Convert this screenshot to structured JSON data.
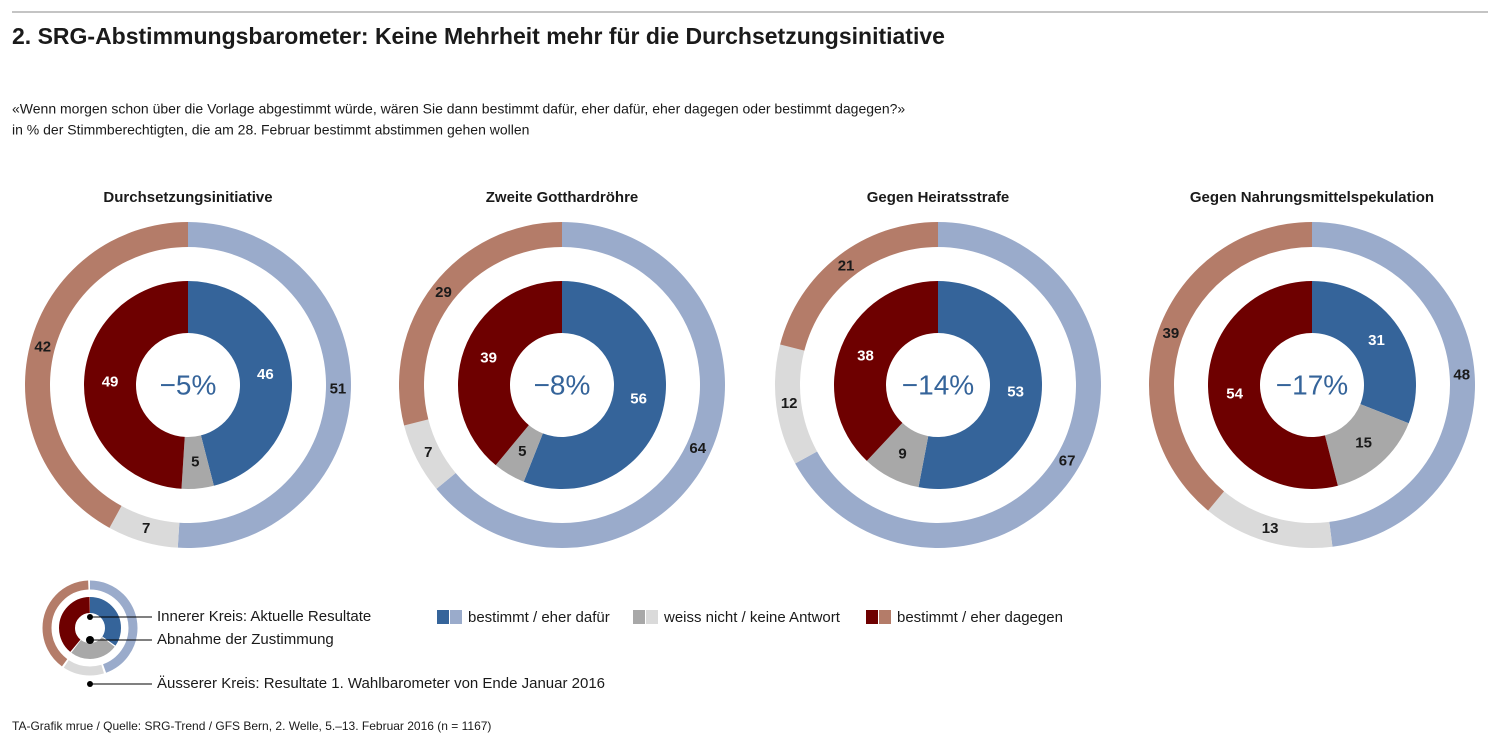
{
  "title": "2. SRG-Abstimmungsbarometer: Keine Mehrheit mehr für die Durchsetzungsinitiative",
  "question": "«Wenn morgen schon über die Vorlage abgestimmt würde, wären Sie dann bestimmt dafür, eher dafür, eher dagegen oder bestimmt dagegen?»",
  "subtitle": "in % der Stimmberechtigten, die am 28. Februar bestimmt abstimmen gehen wollen",
  "legend": [
    {
      "name": "bestimmt / eher dafür",
      "colors": [
        "#35649a",
        "#9aabcb"
      ]
    },
    {
      "name": "weiss nicht / keine Antwort",
      "colors": [
        "#a8a8a8",
        "#dadada"
      ]
    },
    {
      "name": "bestimmt / eher dagegen",
      "colors": [
        "#6e0000",
        "#b47c69"
      ]
    }
  ],
  "key": {
    "inner": "Innerer Kreis: Aktuelle Resultate",
    "center": "Abnahme der Zustimmung",
    "outer": "Äusserer Kreis: Resultate 1. Wahlbarometer von Ende Januar 2016"
  },
  "source": "TA-Grafik mrue / Quelle: SRG-Trend / GFS Bern, 2. Welle, 5.–13. Februar 2016 (n = 1167)",
  "chart_data": [
    {
      "type": "donut",
      "title": "Durchsetzungsinitiative",
      "center_label": "−5%",
      "inner": [
        46,
        5,
        49
      ],
      "outer": [
        51,
        7,
        42
      ]
    },
    {
      "type": "donut",
      "title": "Zweite Gotthardröhre",
      "center_label": "−8%",
      "inner": [
        56,
        5,
        39
      ],
      "outer": [
        64,
        7,
        29
      ]
    },
    {
      "type": "donut",
      "title": "Gegen Heiratsstrafe",
      "center_label": "−14%",
      "inner": [
        53,
        9,
        38
      ],
      "outer": [
        67,
        12,
        21
      ]
    },
    {
      "type": "donut",
      "title": "Gegen Nahrungsmittelspekulation",
      "center_label": "−17%",
      "inner": [
        31,
        15,
        54
      ],
      "outer": [
        48,
        13,
        39
      ]
    }
  ]
}
